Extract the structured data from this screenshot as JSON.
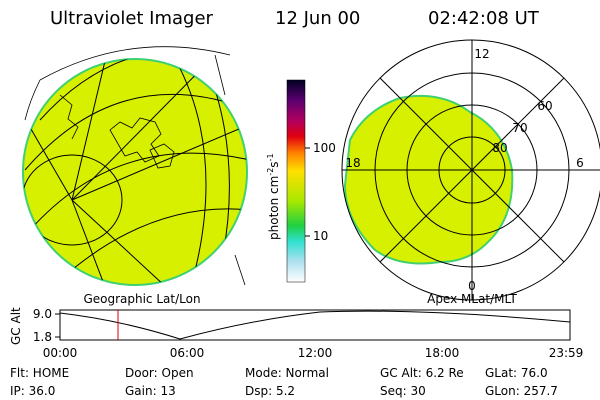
{
  "header": {
    "title": "Ultraviolet Imager",
    "date": "12 Jun 00",
    "time": "02:42:08 UT"
  },
  "map": {
    "caption": "Geographic Lat/Lon"
  },
  "colorbar": {
    "label": "photon cm",
    "exp1": "-2",
    "unit2": "s",
    "exp2": "-1",
    "ticks": [
      "100",
      "10"
    ]
  },
  "polar": {
    "caption": "Apex MLat/MLT",
    "labels": [
      "12",
      "60",
      "70",
      "80",
      "18",
      "6",
      "0"
    ]
  },
  "altitude": {
    "axis_label": "GC Alt",
    "yticks": [
      "9.0",
      "1.8"
    ],
    "xticks": [
      "00:00",
      "06:00",
      "12:00",
      "18:00",
      "23:59"
    ]
  },
  "info": {
    "rows": [
      [
        "Flt: HOME",
        "Door: Open",
        "Mode: Normal",
        "GC Alt: 6.2 Re",
        "GLat: 76.0"
      ],
      [
        "IP: 36.0",
        "Gain: 13",
        "Dsp: 5.2",
        "Seq: 30",
        "GLon: 257.7"
      ]
    ]
  }
}
